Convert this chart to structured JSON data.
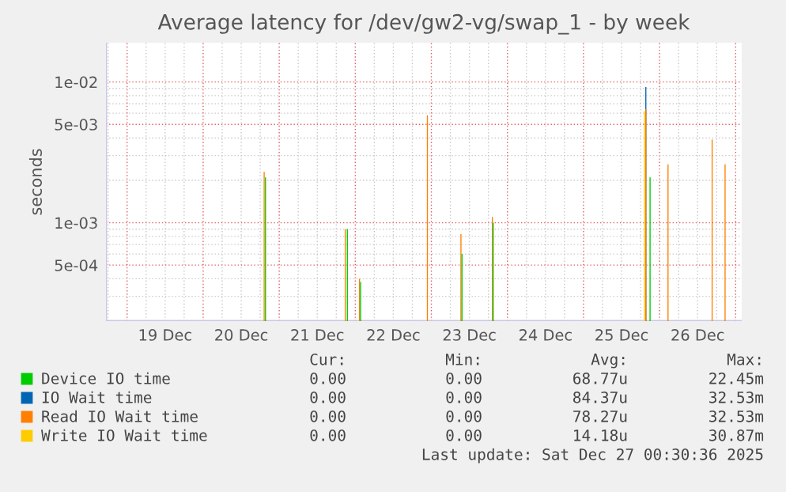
{
  "chart_data": {
    "type": "bar",
    "title": "Average latency for /dev/gw2-vg/swap_1 - by week",
    "ylabel": "seconds",
    "log": "y",
    "grid": true,
    "legend": "bottom",
    "xlim": [
      "2025-12-18T17:20",
      "2025-12-27T01:55"
    ],
    "xticks": [
      {
        "value": "2025-12-19T12:00",
        "label": "19 Dec"
      },
      {
        "value": "2025-12-20T12:00",
        "label": "20 Dec"
      },
      {
        "value": "2025-12-21T12:00",
        "label": "21 Dec"
      },
      {
        "value": "2025-12-22T12:00",
        "label": "22 Dec"
      },
      {
        "value": "2025-12-23T12:00",
        "label": "23 Dec"
      },
      {
        "value": "2025-12-24T12:00",
        "label": "24 Dec"
      },
      {
        "value": "2025-12-25T12:00",
        "label": "25 Dec"
      },
      {
        "value": "2025-12-26T12:00",
        "label": "26 Dec"
      }
    ],
    "ylim": [
      0.0002,
      0.019
    ],
    "yticks": [
      {
        "value": 0.0005,
        "label": "5e-04"
      },
      {
        "value": 0.001,
        "label": "1e-03"
      },
      {
        "value": 0.005,
        "label": "5e-03"
      },
      {
        "value": 0.01,
        "label": "1e-02"
      }
    ],
    "series": [
      {
        "name": "Device IO time",
        "color": "#00cc00",
        "x": [
          "2025-12-20T19:40",
          "2025-12-21T21:30",
          "2025-12-22T01:40",
          "2025-12-23T09:40",
          "2025-12-23T19:30",
          "2025-12-25T21:00"
        ],
        "values": [
          0.0021,
          0.0009,
          0.00038,
          0.0006,
          0.001,
          0.0021
        ]
      },
      {
        "name": "IO Wait time",
        "color": "#0066b3",
        "x": [
          "2025-12-25T19:40"
        ],
        "values": [
          0.0092
        ]
      },
      {
        "name": "Read IO Wait time",
        "color": "#ff8000",
        "x": [
          "2025-12-20T19:15",
          "2025-12-21T20:50",
          "2025-12-22T01:20",
          "2025-12-22T22:45",
          "2025-12-23T09:20",
          "2025-12-23T19:15",
          "2025-12-25T19:40",
          "2025-12-26T02:40",
          "2025-12-26T16:35",
          "2025-12-26T20:40"
        ],
        "values": [
          0.0023,
          0.0009,
          0.0004,
          0.0058,
          0.00083,
          0.0011,
          0.0064,
          0.0026,
          0.0039,
          0.0026
        ]
      },
      {
        "name": "Write IO Wait time",
        "color": "#ffcc00",
        "x": [
          "2025-12-25T19:15"
        ],
        "values": [
          0.0062
        ]
      }
    ],
    "annotations": [
      "Cur:",
      "Min:",
      "Avg:",
      "Max:",
      "0.00",
      "0.00",
      "68.77u",
      "22.45m",
      "0.00",
      "0.00",
      "84.37u",
      "32.53m",
      "0.00",
      "0.00",
      "78.27u",
      "32.53m",
      "0.00",
      "0.00",
      "14.18u",
      "30.87m",
      "Last update: Sat Dec 27 00:30:36 2025"
    ]
  }
}
